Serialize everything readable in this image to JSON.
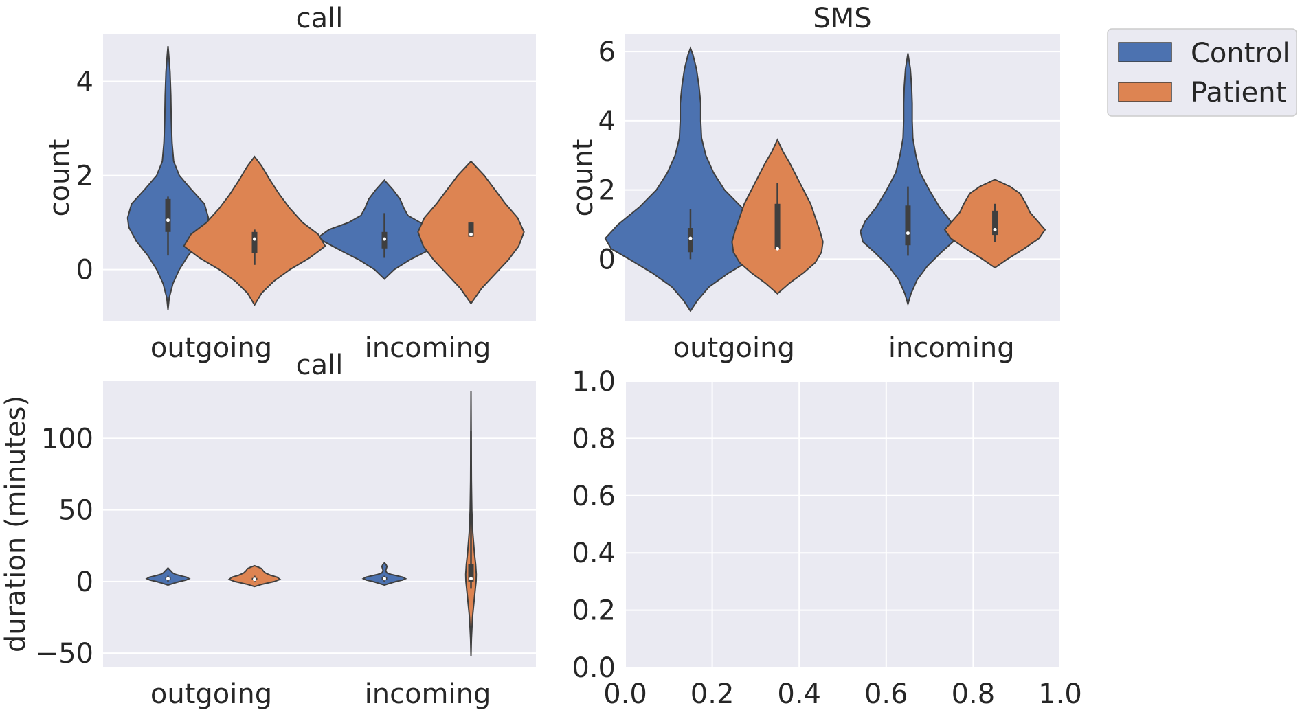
{
  "colors": {
    "Control": "#4c72b0",
    "Patient": "#dd8452"
  },
  "legend": {
    "entries": [
      "Control",
      "Patient"
    ],
    "placement": "outside upper right"
  },
  "chart_data": [
    {
      "type": "violin",
      "title": "call",
      "xlabel": "",
      "ylabel": "count",
      "categories": [
        "outgoing",
        "incoming"
      ],
      "ylim": [
        -1.1,
        5.0
      ],
      "yticks": [
        0,
        2,
        4
      ],
      "grid": true,
      "series": [
        {
          "name": "Control",
          "stats": [
            {
              "min": -0.85,
              "max": 4.75,
              "q1": 0.8,
              "median": 1.05,
              "q3": 1.5,
              "wlo": 0.3,
              "whi": 1.55,
              "peak": 1.05,
              "profile": [
                [
                  -0.85,
                  0.0
                ],
                [
                  -0.6,
                  0.03
                ],
                [
                  -0.3,
                  0.12
                ],
                [
                  0.0,
                  0.28
                ],
                [
                  0.3,
                  0.5
                ],
                [
                  0.6,
                  0.78
                ],
                [
                  0.9,
                  0.97
                ],
                [
                  1.1,
                  1.0
                ],
                [
                  1.4,
                  0.9
                ],
                [
                  1.7,
                  0.58
                ],
                [
                  2.0,
                  0.28
                ],
                [
                  2.3,
                  0.14
                ],
                [
                  2.7,
                  0.1
                ],
                [
                  3.2,
                  0.08
                ],
                [
                  3.7,
                  0.07
                ],
                [
                  4.2,
                  0.05
                ],
                [
                  4.55,
                  0.02
                ],
                [
                  4.75,
                  0.0
                ]
              ]
            },
            {
              "min": -0.2,
              "max": 1.9,
              "q1": 0.45,
              "median": 0.65,
              "q3": 0.8,
              "wlo": 0.25,
              "whi": 1.2,
              "peak": 0.65,
              "profile": [
                [
                  -0.2,
                  0.0
                ],
                [
                  0.0,
                  0.15
                ],
                [
                  0.2,
                  0.38
                ],
                [
                  0.4,
                  0.66
                ],
                [
                  0.6,
                  0.93
                ],
                [
                  0.7,
                  1.0
                ],
                [
                  0.85,
                  0.85
                ],
                [
                  1.0,
                  0.55
                ],
                [
                  1.15,
                  0.36
                ],
                [
                  1.3,
                  0.3
                ],
                [
                  1.5,
                  0.24
                ],
                [
                  1.7,
                  0.13
                ],
                [
                  1.9,
                  0.0
                ]
              ]
            }
          ]
        },
        {
          "name": "Patient",
          "stats": [
            {
              "min": -0.75,
              "max": 2.4,
              "q1": 0.35,
              "median": 0.65,
              "q3": 0.8,
              "wlo": 0.1,
              "whi": 0.85,
              "peak": 0.6,
              "profile": [
                [
                  -0.75,
                  0.0
                ],
                [
                  -0.5,
                  0.1
                ],
                [
                  -0.25,
                  0.27
                ],
                [
                  0.0,
                  0.5
                ],
                [
                  0.25,
                  0.78
                ],
                [
                  0.5,
                  1.0
                ],
                [
                  0.75,
                  0.9
                ],
                [
                  1.0,
                  0.68
                ],
                [
                  1.3,
                  0.5
                ],
                [
                  1.6,
                  0.35
                ],
                [
                  1.9,
                  0.22
                ],
                [
                  2.2,
                  0.1
                ],
                [
                  2.4,
                  0.0
                ]
              ]
            },
            {
              "min": -0.72,
              "max": 2.3,
              "q1": 0.7,
              "median": 0.75,
              "q3": 1.0,
              "wlo": 0.7,
              "whi": 1.0,
              "peak": 0.8,
              "profile": [
                [
                  -0.72,
                  0.0
                ],
                [
                  -0.4,
                  0.2
                ],
                [
                  -0.1,
                  0.45
                ],
                [
                  0.2,
                  0.7
                ],
                [
                  0.5,
                  0.9
                ],
                [
                  0.8,
                  1.0
                ],
                [
                  1.1,
                  0.88
                ],
                [
                  1.4,
                  0.65
                ],
                [
                  1.7,
                  0.45
                ],
                [
                  2.0,
                  0.25
                ],
                [
                  2.3,
                  0.0
                ]
              ]
            }
          ]
        }
      ]
    },
    {
      "type": "violin",
      "title": "SMS",
      "xlabel": "",
      "ylabel": "count",
      "categories": [
        "outgoing",
        "incoming"
      ],
      "ylim": [
        -1.8,
        6.5
      ],
      "yticks": [
        0,
        2,
        4,
        6
      ],
      "grid": true,
      "series": [
        {
          "name": "Control",
          "stats": [
            {
              "min": -1.5,
              "max": 6.1,
              "q1": 0.2,
              "median": 0.6,
              "q3": 0.9,
              "wlo": 0.0,
              "whi": 1.45,
              "peak": 0.5,
              "profile": [
                [
                  -1.5,
                  0.0
                ],
                [
                  -1.2,
                  0.08
                ],
                [
                  -0.8,
                  0.22
                ],
                [
                  -0.4,
                  0.45
                ],
                [
                  0.0,
                  0.72
                ],
                [
                  0.3,
                  0.93
                ],
                [
                  0.6,
                  1.0
                ],
                [
                  1.0,
                  0.85
                ],
                [
                  1.5,
                  0.6
                ],
                [
                  2.0,
                  0.4
                ],
                [
                  2.5,
                  0.27
                ],
                [
                  3.0,
                  0.18
                ],
                [
                  3.5,
                  0.13
                ],
                [
                  4.0,
                  0.12
                ],
                [
                  4.5,
                  0.12
                ],
                [
                  5.0,
                  0.1
                ],
                [
                  5.5,
                  0.07
                ],
                [
                  5.9,
                  0.03
                ],
                [
                  6.1,
                  0.0
                ]
              ]
            },
            {
              "min": -1.3,
              "max": 5.95,
              "q1": 0.4,
              "median": 0.75,
              "q3": 1.55,
              "wlo": 0.1,
              "whi": 2.1,
              "peak": 0.7,
              "profile": [
                [
                  -1.3,
                  0.0
                ],
                [
                  -1.0,
                  0.05
                ],
                [
                  -0.6,
                  0.15
                ],
                [
                  -0.2,
                  0.32
                ],
                [
                  0.2,
                  0.55
                ],
                [
                  0.5,
                  0.74
                ],
                [
                  0.8,
                  0.78
                ],
                [
                  1.1,
                  0.7
                ],
                [
                  1.5,
                  0.52
                ],
                [
                  2.0,
                  0.35
                ],
                [
                  2.5,
                  0.2
                ],
                [
                  3.0,
                  0.13
                ],
                [
                  3.5,
                  0.08
                ],
                [
                  4.0,
                  0.07
                ],
                [
                  4.5,
                  0.07
                ],
                [
                  5.0,
                  0.06
                ],
                [
                  5.5,
                  0.04
                ],
                [
                  5.95,
                  0.0
                ]
              ]
            }
          ]
        },
        {
          "name": "Patient",
          "stats": [
            {
              "min": -1.0,
              "max": 3.45,
              "q1": 0.3,
              "median": 0.3,
              "q3": 1.6,
              "wlo": 0.3,
              "whi": 2.2,
              "peak": 0.9,
              "profile": [
                [
                  -1.0,
                  0.0
                ],
                [
                  -0.7,
                  0.25
                ],
                [
                  -0.4,
                  0.55
                ],
                [
                  -0.1,
                  0.8
                ],
                [
                  0.2,
                  0.93
                ],
                [
                  0.5,
                  0.96
                ],
                [
                  0.8,
                  0.9
                ],
                [
                  1.2,
                  0.8
                ],
                [
                  1.6,
                  0.7
                ],
                [
                  2.0,
                  0.55
                ],
                [
                  2.4,
                  0.4
                ],
                [
                  2.8,
                  0.25
                ],
                [
                  3.1,
                  0.12
                ],
                [
                  3.45,
                  0.0
                ]
              ]
            },
            {
              "min": -0.25,
              "max": 2.3,
              "q1": 0.7,
              "median": 0.85,
              "q3": 1.4,
              "wlo": 0.5,
              "whi": 1.6,
              "peak": 0.85,
              "profile": [
                [
                  -0.25,
                  0.0
                ],
                [
                  0.0,
                  0.25
                ],
                [
                  0.3,
                  0.58
                ],
                [
                  0.6,
                  0.88
                ],
                [
                  0.85,
                  1.0
                ],
                [
                  1.1,
                  0.85
                ],
                [
                  1.35,
                  0.7
                ],
                [
                  1.6,
                  0.62
                ],
                [
                  1.9,
                  0.5
                ],
                [
                  2.1,
                  0.3
                ],
                [
                  2.3,
                  0.0
                ]
              ]
            }
          ]
        }
      ]
    },
    {
      "type": "violin",
      "title": "call",
      "xlabel": "",
      "ylabel": "duration (minutes)",
      "categories": [
        "outgoing",
        "incoming"
      ],
      "ylim": [
        -60,
        140
      ],
      "yticks": [
        -50,
        0,
        50,
        100
      ],
      "grid": true,
      "series": [
        {
          "name": "Control",
          "stats": [
            {
              "min": -2.5,
              "max": 9.5,
              "q1": 1.0,
              "median": 2.0,
              "q3": 3.0,
              "wlo": 0.0,
              "whi": 4.0,
              "peak": 2.0,
              "profile": [
                [
                  -2.5,
                  0.0
                ],
                [
                  -1.5,
                  0.2
                ],
                [
                  0.0,
                  0.55
                ],
                [
                  1.0,
                  0.85
                ],
                [
                  2.0,
                  1.0
                ],
                [
                  3.0,
                  0.88
                ],
                [
                  4.0,
                  0.6
                ],
                [
                  5.0,
                  0.35
                ],
                [
                  6.0,
                  0.22
                ],
                [
                  7.0,
                  0.16
                ],
                [
                  8.5,
                  0.06
                ],
                [
                  9.5,
                  0.0
                ]
              ]
            },
            {
              "min": -2.5,
              "max": 13.0,
              "q1": 1.0,
              "median": 2.0,
              "q3": 3.0,
              "wlo": 0.0,
              "whi": 4.0,
              "peak": 2.0,
              "profile": [
                [
                  -2.5,
                  0.0
                ],
                [
                  -1.5,
                  0.2
                ],
                [
                  0.0,
                  0.55
                ],
                [
                  1.0,
                  0.85
                ],
                [
                  2.0,
                  1.0
                ],
                [
                  3.0,
                  0.88
                ],
                [
                  4.0,
                  0.6
                ],
                [
                  5.0,
                  0.3
                ],
                [
                  6.0,
                  0.12
                ],
                [
                  7.5,
                  0.06
                ],
                [
                  9.0,
                  0.09
                ],
                [
                  10.5,
                  0.12
                ],
                [
                  12.0,
                  0.07
                ],
                [
                  13.0,
                  0.0
                ]
              ]
            }
          ]
        },
        {
          "name": "Patient",
          "stats": [
            {
              "min": -3.5,
              "max": 11.0,
              "q1": 1.0,
              "median": 1.5,
              "q3": 2.5,
              "wlo": 0.0,
              "whi": 4.0,
              "peak": 1.5,
              "profile": [
                [
                  -3.5,
                  0.0
                ],
                [
                  -2.0,
                  0.25
                ],
                [
                  0.0,
                  0.7
                ],
                [
                  1.5,
                  0.9
                ],
                [
                  3.0,
                  0.8
                ],
                [
                  4.5,
                  0.55
                ],
                [
                  6.0,
                  0.38
                ],
                [
                  7.5,
                  0.3
                ],
                [
                  9.0,
                  0.25
                ],
                [
                  10.0,
                  0.14
                ],
                [
                  11.0,
                  0.0
                ]
              ]
            },
            {
              "min": -52.0,
              "max": 133.0,
              "q1": 0.0,
              "median": 2.0,
              "q3": 12.0,
              "wlo": -5.0,
              "whi": 105.0,
              "peak": 2.0,
              "profile": [
                [
                  -52.0,
                  0.0
                ],
                [
                  -40.0,
                  0.02
                ],
                [
                  -25.0,
                  0.07
                ],
                [
                  -10.0,
                  0.17
                ],
                [
                  0.0,
                  0.24
                ],
                [
                  5.0,
                  0.25
                ],
                [
                  12.0,
                  0.22
                ],
                [
                  20.0,
                  0.16
                ],
                [
                  35.0,
                  0.08
                ],
                [
                  50.0,
                  0.04
                ],
                [
                  70.0,
                  0.02
                ],
                [
                  100.0,
                  0.01
                ],
                [
                  133.0,
                  0.0
                ]
              ]
            }
          ]
        }
      ]
    },
    {
      "type": "empty",
      "title": "",
      "xlabel": "",
      "ylabel": "",
      "xlim": [
        0.0,
        1.0
      ],
      "ylim": [
        0.0,
        1.0
      ],
      "xticks": [
        "0.0",
        "0.2",
        "0.4",
        "0.6",
        "0.8",
        "1.0"
      ],
      "yticks": [
        "0.0",
        "0.2",
        "0.4",
        "0.6",
        "0.8",
        "1.0"
      ],
      "grid": true
    }
  ]
}
